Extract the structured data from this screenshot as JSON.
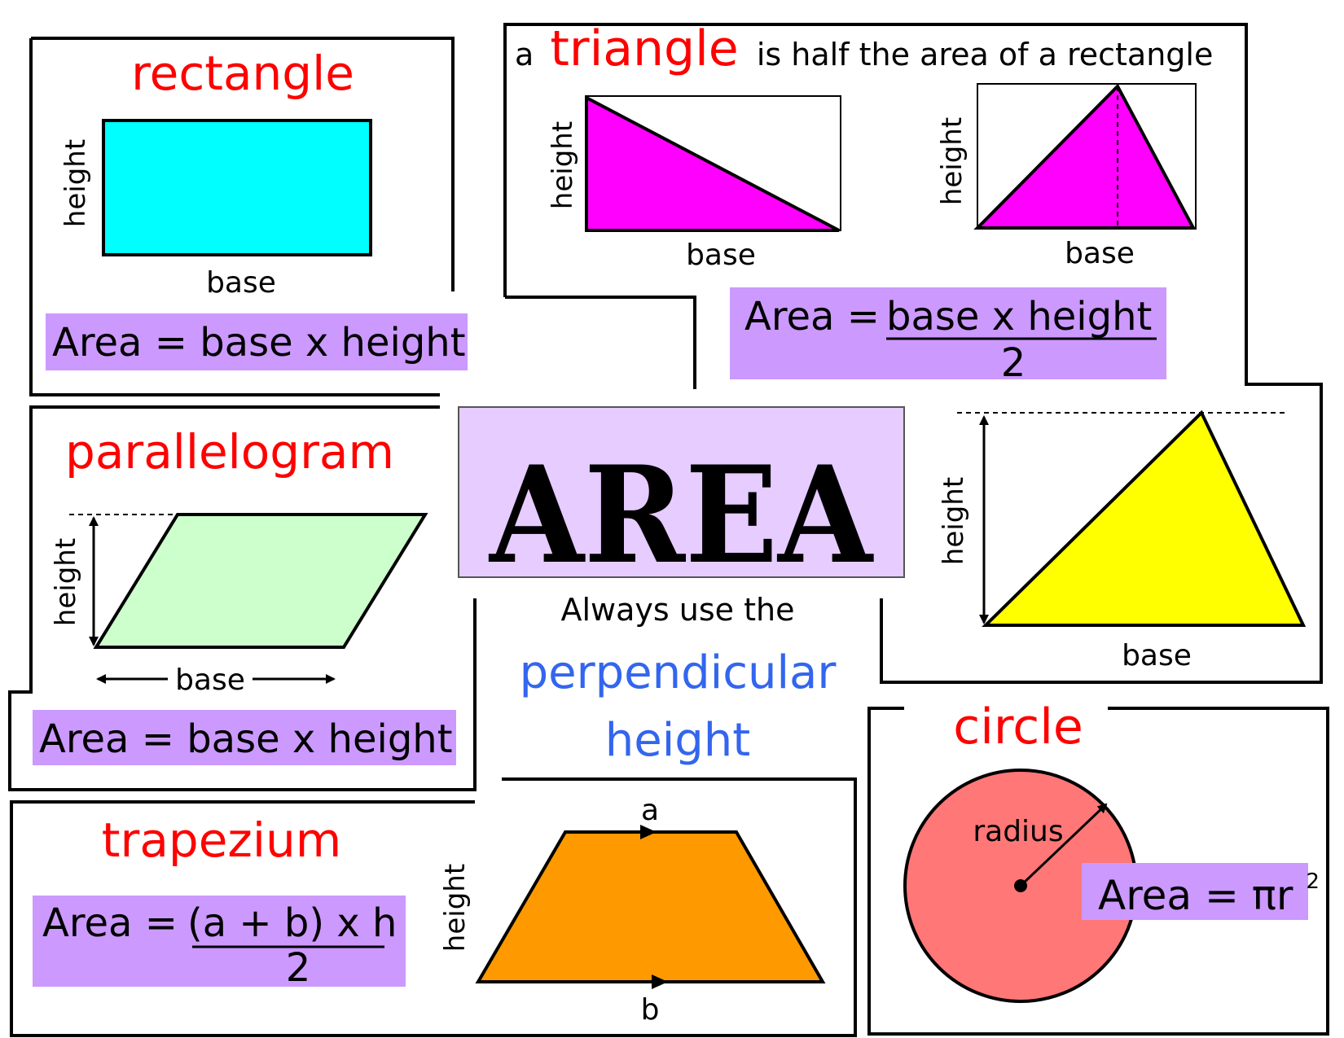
{
  "title": "AREA",
  "center": {
    "line1": "Always use the",
    "line2": "perpendicular",
    "line3": "height"
  },
  "rectangle": {
    "name": "rectangle",
    "height_label": "height",
    "base_label": "base",
    "formula": "Area = base x height"
  },
  "triangle": {
    "prefix": "a",
    "name": "triangle",
    "suffix": "is half the area of a rectangle",
    "left_height_label": "height",
    "left_base_label": "base",
    "right_height_label": "height",
    "right_base_label": "base",
    "formula_left": "Area =",
    "formula_numerator": "base x height",
    "formula_denominator": "2",
    "big_height_label": "height",
    "big_base_label": "base"
  },
  "parallelogram": {
    "name": "parallelogram",
    "height_label": "height",
    "base_label": "base",
    "formula": "Area = base x height"
  },
  "trapezium": {
    "name": "trapezium",
    "formula_left": "Area =",
    "formula_numerator": "(a + b) x h",
    "formula_denominator": "2",
    "top_label": "a",
    "bottom_label": "b",
    "height_label": "height"
  },
  "circle": {
    "name": "circle",
    "radius_label": "radius",
    "formula": "Area = πr",
    "formula_sup": "2"
  },
  "colors": {
    "title_red": "#ff0000",
    "accent_blue": "#3366ee",
    "formula_purple": "#cc99ff",
    "title_bg": "#e6ccff",
    "rectangle_fill": "#00ffff",
    "triangle_fill": "#ff00ff",
    "big_triangle_fill": "#ffff00",
    "parallelogram_fill": "#ccffcc",
    "trapezium_fill": "#ff9900",
    "circle_fill": "#ff7777"
  }
}
